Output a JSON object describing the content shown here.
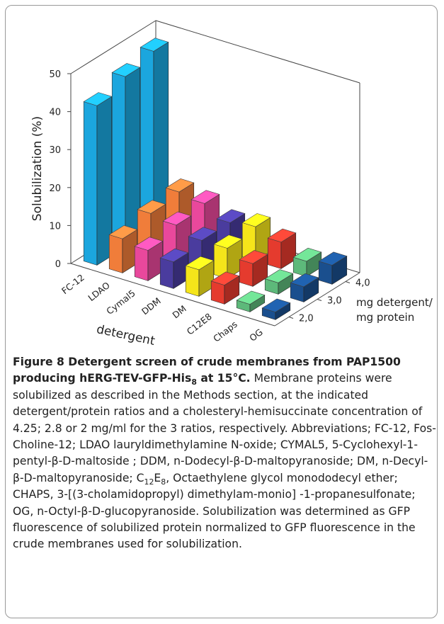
{
  "chart_data": {
    "type": "bar3d",
    "y_label": "Solubilization (%)",
    "x_label": "detergent",
    "z_label": [
      "mg detergent/",
      "mg protein"
    ],
    "categories": [
      "FC-12",
      "LDAO",
      "Cymal5",
      "DDM",
      "DM",
      "C12E8",
      "Chaps",
      "OG"
    ],
    "colors": [
      "#1ba6de",
      "#f07d3a",
      "#e9489c",
      "#4a3c9e",
      "#f5e51a",
      "#e53b2e",
      "#5db97a",
      "#1a4f8e"
    ],
    "series": [
      {
        "name": "2,0",
        "values": [
          42,
          9,
          8,
          7,
          7,
          5,
          2,
          2
        ]
      },
      {
        "name": "3,0",
        "values": [
          45,
          11,
          10,
          8,
          8,
          6,
          3,
          4
        ]
      },
      {
        "name": "4,0",
        "values": [
          47,
          12,
          11,
          8,
          9,
          7,
          4,
          5
        ]
      }
    ],
    "ylim": [
      0,
      50
    ],
    "yticks": [
      0,
      10,
      20,
      30,
      40,
      50
    ]
  },
  "caption": {
    "label": "Figure 8",
    "title": [
      "Detergent screen of crude membranes from PAP1500 producing hERG-TEV-GFP-His",
      "8",
      " at 15°C."
    ],
    "body": [
      "Membrane proteins were solubilized as described in the Methods section, at the indicated detergent/protein ratios and a cholesteryl-hemisuccinate concentration of 4.25; 2.8 or 2 mg/ml for the 3 ratios, respectively. Abbreviations; FC-12, Fos-Choline-12; LDAO lauryldimethylamine N-oxide; CYMAL5, 5-Cyclohexyl-1-pentyl-β-D-maltoside ; DDM, n-Dodecyl-β-D-maltopyranoside; DM, n-Decyl-β-D-maltopyranoside; C",
      "12",
      "E",
      "8",
      ", Octaethylene glycol monododecyl ether; CHAPS, 3-[(3-cholamidopropyl) dimethylam-monio] -1-propanesulfonate; OG, n-Octyl-β-D-glucopyranoside. Solubilization was determined as GFP fluorescence of solubilized protein normalized to GFP fluorescence in the crude membranes used for solubilization."
    ]
  }
}
